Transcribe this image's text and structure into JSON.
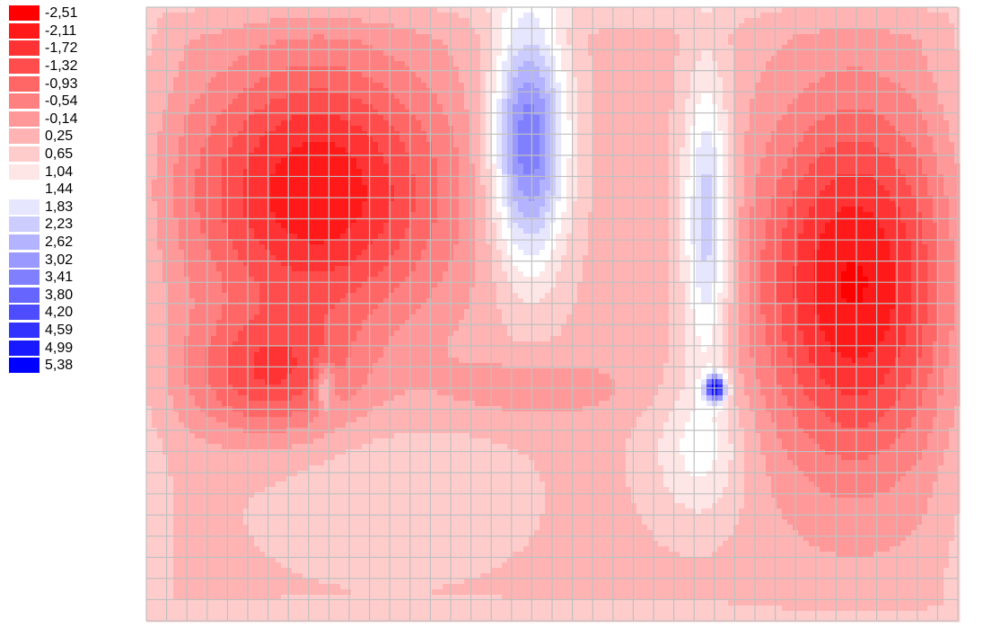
{
  "chart_data": {
    "type": "heatmap",
    "title": "",
    "xlabel": "",
    "ylabel": "",
    "grid": true,
    "legend_position": "top-left",
    "color_scale": {
      "negative_color": "#ff0000",
      "neutral_color": "#ffffff",
      "positive_color": "#0000ff",
      "neutral_level": 1.44
    },
    "legend": {
      "levels": [
        "-2,51",
        "-2,11",
        "-1,72",
        "-1,32",
        "-0,93",
        "-0,54",
        "-0,14",
        "0,25",
        "0,65",
        "1,04",
        "1,44",
        "1,83",
        "2,23",
        "2,62",
        "3,02",
        "3,41",
        "3,80",
        "4,20",
        "4,59",
        "4,99",
        "5,38"
      ],
      "values": [
        -2.51,
        -2.11,
        -1.72,
        -1.32,
        -0.93,
        -0.54,
        -0.14,
        0.25,
        0.65,
        1.04,
        1.44,
        1.83,
        2.23,
        2.62,
        3.02,
        3.41,
        3.8,
        4.2,
        4.59,
        4.99,
        5.38
      ]
    },
    "mesh": {
      "columns": 40,
      "rows": 29,
      "grid_color": "#c0c0c0"
    },
    "contour_line_color": "#c8c8c8",
    "features": [
      {
        "name": "left-negative-lobe",
        "center": [
          0.21,
          0.38
        ],
        "peak": -2.5
      },
      {
        "name": "right-negative-lobe",
        "center": [
          0.88,
          0.5
        ],
        "peak": -2.5
      },
      {
        "name": "upper-middle-positive-lobe",
        "center": [
          0.47,
          0.23
        ],
        "peak": 4.2
      },
      {
        "name": "upper-right-positive-lobe",
        "center": [
          0.69,
          0.38
        ],
        "peak": 2.9
      },
      {
        "name": "singular-point-left",
        "center": [
          0.22,
          0.62
        ],
        "peak": 1.5
      },
      {
        "name": "singular-point-right",
        "center": [
          0.7,
          0.62
        ],
        "peak": 5.4
      }
    ]
  }
}
